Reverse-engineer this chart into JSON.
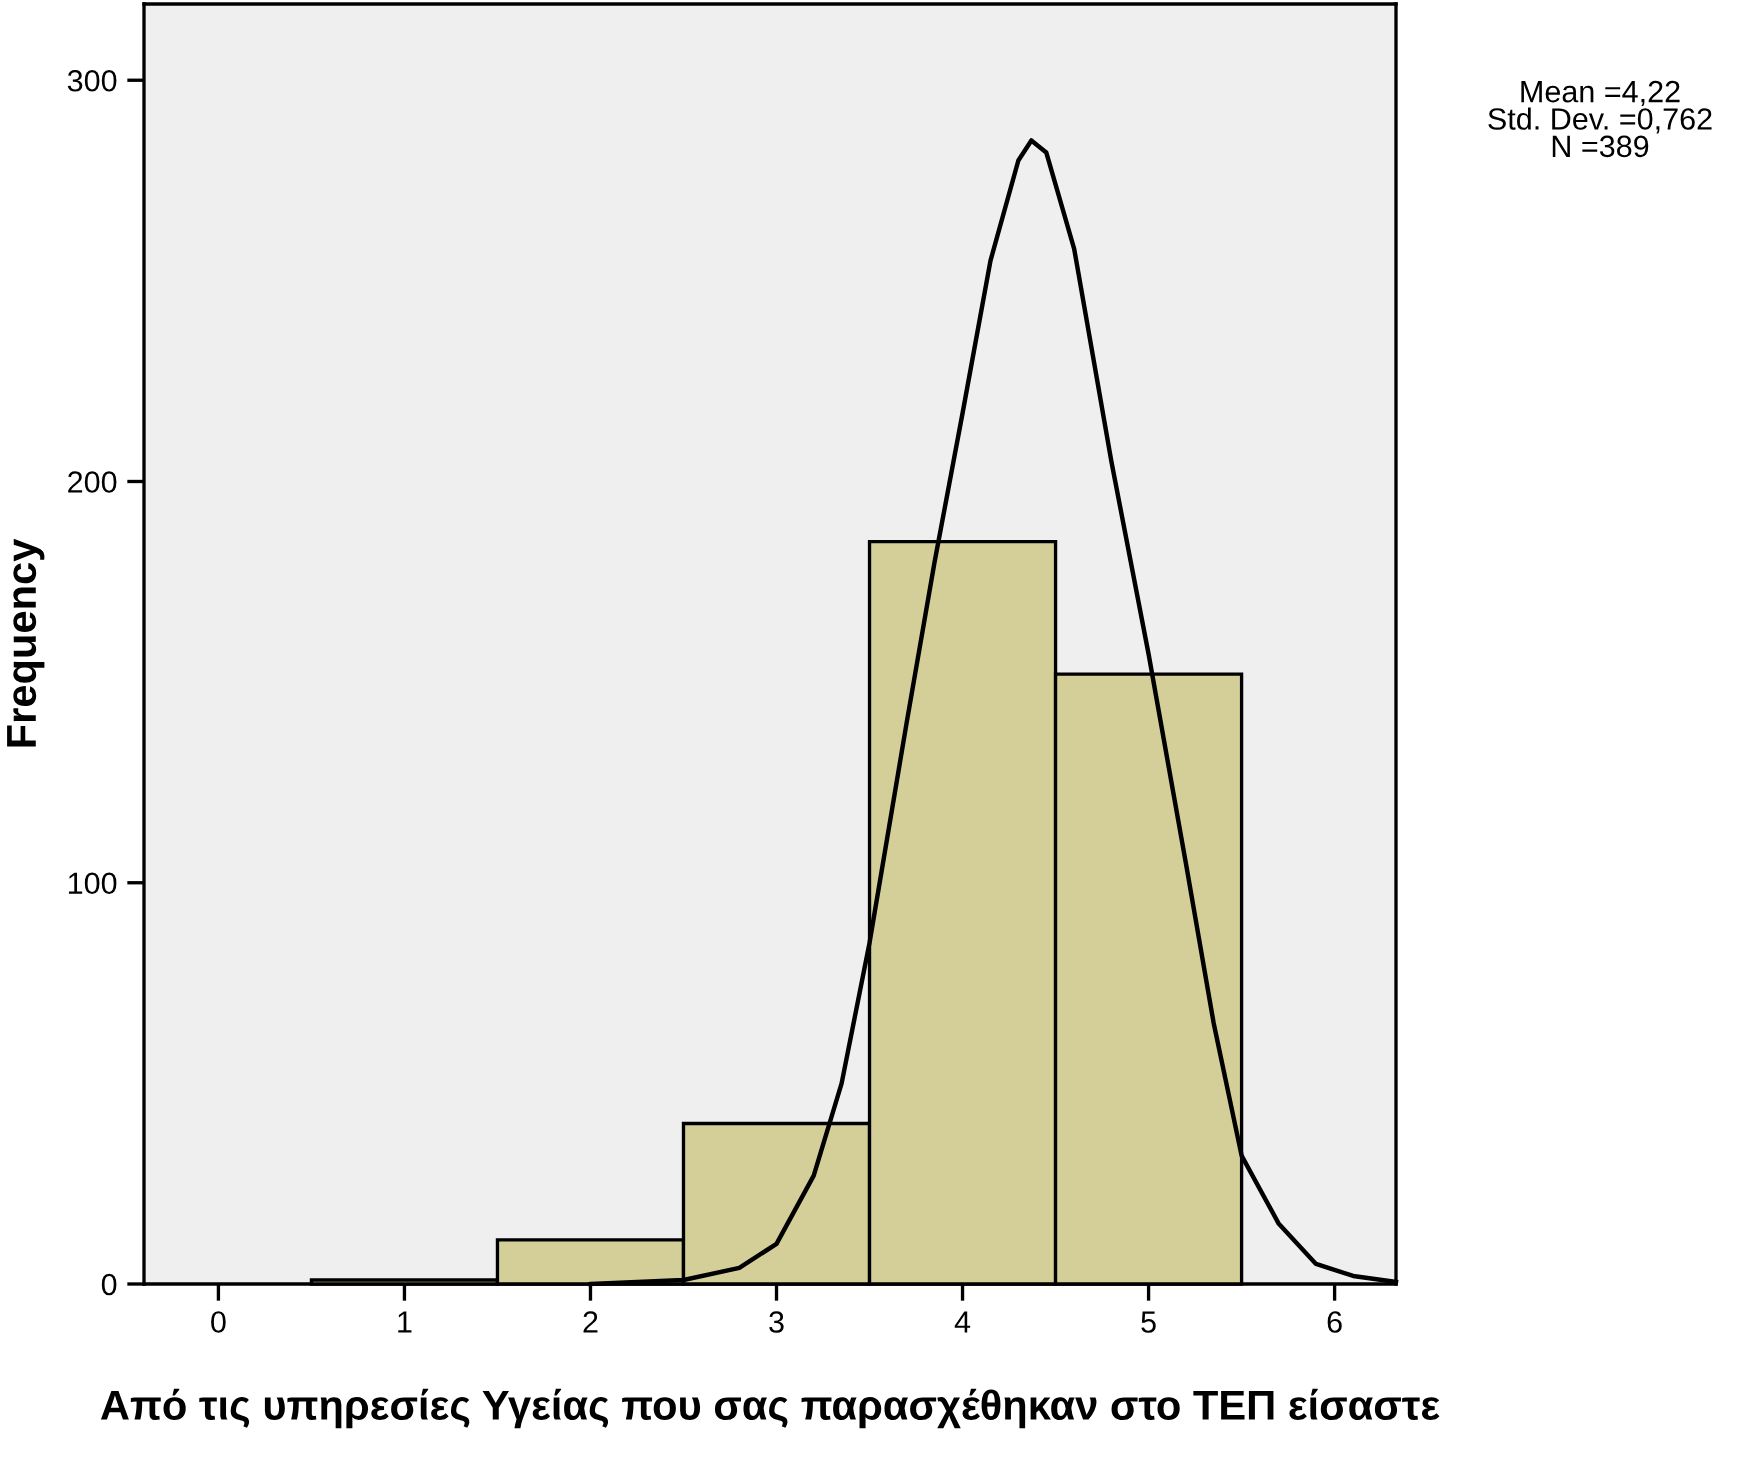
{
  "chart_data": {
    "type": "histogram",
    "xlabel": "Από τις υπηρεσίες Υγείας που σας παρασχέθηκαν στο ΤΕΠ είσαστε",
    "ylabel": "Frequency",
    "bins": [
      0.5,
      1.5,
      2.5,
      3.5,
      4.5,
      5.5
    ],
    "values": [
      1,
      11,
      40,
      185,
      152
    ],
    "color": "#d4cf98",
    "series": [
      {
        "type": "line",
        "color": "#000000",
        "x": [
          2.0,
          2.5,
          2.8,
          3.0,
          3.2,
          3.35,
          3.5,
          3.7,
          3.85,
          4.0,
          4.15,
          4.3,
          4.37,
          4.45,
          4.6,
          4.8,
          5.0,
          5.2,
          5.35,
          5.5,
          5.7,
          5.9,
          6.1,
          6.33
        ],
        "values": [
          0,
          1,
          4,
          10,
          27,
          50,
          85,
          140,
          180,
          217,
          255,
          280,
          285,
          282,
          258,
          205,
          157,
          105,
          65,
          32,
          15,
          5,
          2,
          0.5
        ]
      }
    ],
    "xlim": [
      -0.4,
      6.33
    ],
    "ylim": [
      0,
      319
    ],
    "xticks": [
      0,
      1,
      2,
      3,
      4,
      5,
      6
    ],
    "yticks": [
      0,
      100,
      200,
      300
    ],
    "annotations": [
      "Mean =4,22\nStd. Dev. =0,762\nN =389"
    ],
    "grid": false,
    "legend": false
  }
}
